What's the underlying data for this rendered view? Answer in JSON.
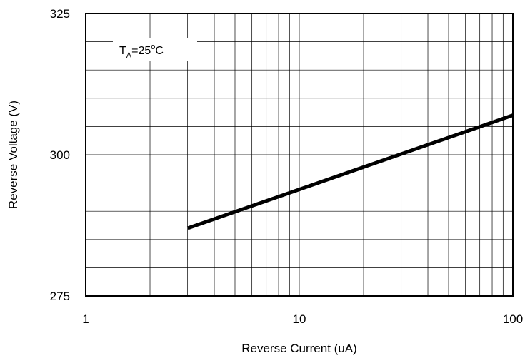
{
  "chart_data": {
    "type": "line",
    "title": "",
    "xlabel": "Reverse Current (uA)",
    "ylabel": "Reverse Voltage (V)",
    "xscale": "log",
    "xlim": [
      1,
      100
    ],
    "ylim": [
      275,
      325
    ],
    "xticks": [
      "1",
      "10",
      "100"
    ],
    "yticks": [
      "275",
      "300",
      "325"
    ],
    "grid": true,
    "annotation": {
      "main": "T",
      "sub": "A",
      "mid": "=25",
      "sup": "o",
      "end": "C"
    },
    "series": [
      {
        "color": "#000000",
        "x": [
          3,
          100
        ],
        "y": [
          287,
          307
        ]
      }
    ]
  }
}
